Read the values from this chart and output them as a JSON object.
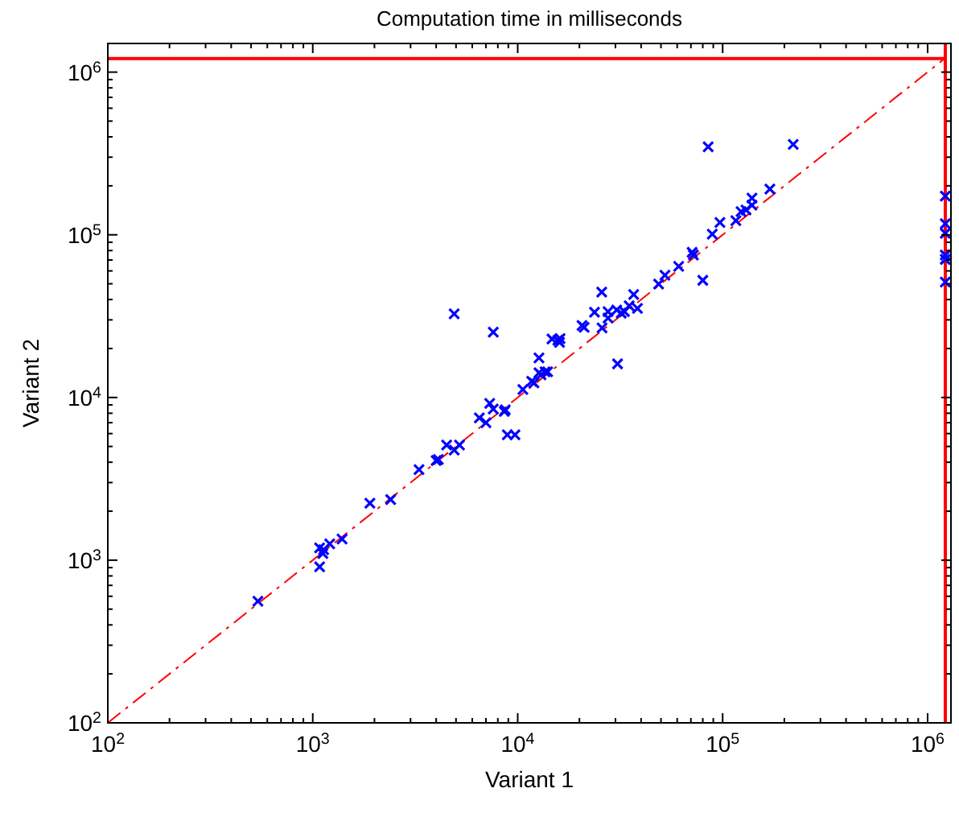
{
  "chart_data": {
    "type": "scatter",
    "title": "Computation time in milliseconds",
    "xlabel": "Variant 1",
    "ylabel": "Variant 2",
    "log": "xy",
    "marker": "cross",
    "xlim": [
      100,
      1300000
    ],
    "ylim": [
      100,
      1500000
    ],
    "xticks": [
      {
        "value": 100,
        "label": "10$^{2}$"
      },
      {
        "value": 1000,
        "label": "10$^{3}$"
      },
      {
        "value": 10000,
        "label": "10$^{4}$"
      },
      {
        "value": 100000,
        "label": "10$^{5}$"
      },
      {
        "value": 1000000,
        "label": "10$^{6}$"
      }
    ],
    "yticks": [
      {
        "value": 100,
        "label": "10$^{2}$"
      },
      {
        "value": 1000,
        "label": "10$^{3}$"
      },
      {
        "value": 10000,
        "label": "10$^{4}$"
      },
      {
        "value": 100000,
        "label": "10$^{5}$"
      },
      {
        "value": 1000000,
        "label": "10$^{6}$"
      }
    ],
    "ref_lines": [
      {
        "axis": "x",
        "value": 1220000,
        "color": "#ff0000"
      },
      {
        "axis": "y",
        "value": 1210000,
        "color": "#ff0000"
      }
    ],
    "series": [
      {
        "type": "line",
        "color": "#ff0000",
        "line_style": "dashed",
        "marker": "none",
        "x": [
          100,
          1200000
        ],
        "values": [
          100,
          1200000
        ]
      },
      {
        "type": "scatter",
        "color": "#0000ff",
        "x": [
          540,
          1080,
          1080,
          1120,
          1130,
          1210,
          1390,
          1900,
          2400,
          3300,
          4000,
          4100,
          4500,
          4900,
          5200,
          6500,
          7000,
          7300,
          7600,
          8600,
          8700,
          8900,
          9700,
          10600,
          11700,
          12000,
          12700,
          13000,
          13600,
          14000,
          12700,
          14700,
          15700,
          16100,
          16000,
          4900,
          7600,
          20600,
          21100,
          23700,
          25700,
          25800,
          27600,
          27600,
          30700,
          30400,
          32000,
          33200,
          35000,
          36800,
          38400,
          48700,
          52300,
          61000,
          71000,
          72000,
          80000,
          89000,
          97000,
          116000,
          123000,
          130000,
          139000,
          139000,
          170000,
          85000,
          221000,
          1220000,
          1220000,
          1220000,
          1220000,
          1220000,
          1220000
        ],
        "values": [
          560,
          910,
          1190,
          1100,
          1160,
          1260,
          1350,
          2240,
          2360,
          3600,
          4100,
          4150,
          5100,
          4750,
          5100,
          7500,
          7000,
          9200,
          8500,
          8200,
          8400,
          5900,
          5900,
          11200,
          12600,
          12300,
          14200,
          13800,
          14400,
          14400,
          17500,
          22900,
          22500,
          23000,
          21800,
          32700,
          25200,
          27700,
          27000,
          33400,
          44400,
          26800,
          33700,
          30800,
          16100,
          34500,
          33000,
          33700,
          36600,
          43000,
          35300,
          49800,
          56500,
          64000,
          78000,
          75000,
          52500,
          101000,
          119000,
          122000,
          139000,
          142000,
          168000,
          152000,
          191000,
          347000,
          360000,
          173000,
          117000,
          102000,
          75000,
          70600,
          51300
        ]
      }
    ]
  }
}
